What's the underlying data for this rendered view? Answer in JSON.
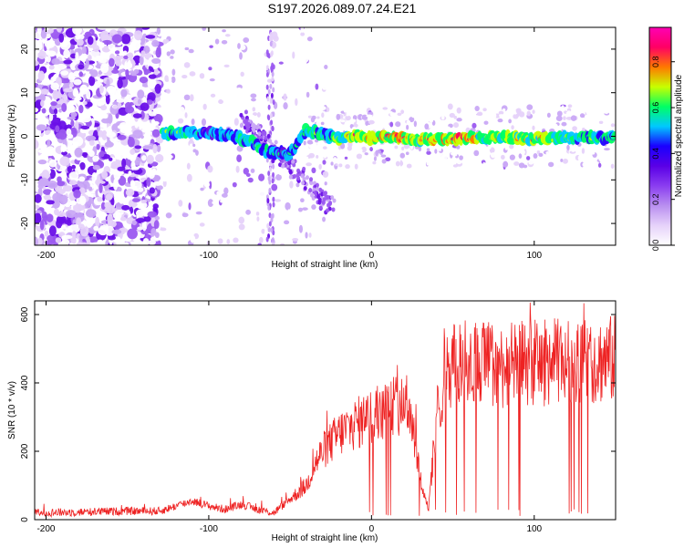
{
  "title": "S197.2026.089.07.24.E21",
  "colors": {
    "axis": "#000000",
    "snr_line": "#ee2222",
    "colormap": [
      "#ffffff",
      "#e6d2fa",
      "#b98ff0",
      "#8a3df0",
      "#5a00e6",
      "#1a00ff",
      "#00c8ff",
      "#00ff64",
      "#c8ff00",
      "#ff7800",
      "#ff0064",
      "#ff00b4"
    ]
  },
  "chart_data": [
    {
      "type": "heatmap",
      "title": "S197.2026.089.07.24.E21",
      "xlabel": "Height of straight line (km)",
      "ylabel": "Frequency (Hz)",
      "xlim": [
        -207,
        150
      ],
      "ylim": [
        -25,
        25
      ],
      "xticks": [
        "-200",
        "-100",
        "0",
        "100"
      ],
      "yticks": [
        "-20",
        "-10",
        "0",
        "10",
        "20"
      ],
      "colorbar": {
        "label": "Normalized spectral amplitude",
        "range": [
          0,
          0.95
        ],
        "ticks": [
          "0.0",
          "0.2",
          "0.4",
          "0.6",
          "0.8"
        ]
      },
      "ridge": [
        {
          "x": -128,
          "y": 0.6,
          "a": 0.45
        },
        {
          "x": -115,
          "y": 1.0,
          "a": 0.42
        },
        {
          "x": -100,
          "y": 0.8,
          "a": 0.35
        },
        {
          "x": -85,
          "y": 0.0,
          "a": 0.4
        },
        {
          "x": -75,
          "y": -1.0,
          "a": 0.45
        },
        {
          "x": -65,
          "y": -3.5,
          "a": 0.42
        },
        {
          "x": -50,
          "y": -4.0,
          "a": 0.35
        },
        {
          "x": -40,
          "y": 1.5,
          "a": 0.4
        },
        {
          "x": -30,
          "y": 0.5,
          "a": 0.45
        },
        {
          "x": -20,
          "y": -0.5,
          "a": 0.55
        },
        {
          "x": -10,
          "y": 0.3,
          "a": 0.65
        },
        {
          "x": 0,
          "y": -0.5,
          "a": 0.7
        },
        {
          "x": 10,
          "y": 0.0,
          "a": 0.75
        },
        {
          "x": 25,
          "y": -0.7,
          "a": 0.6
        },
        {
          "x": 40,
          "y": -0.7,
          "a": 0.7
        },
        {
          "x": 55,
          "y": -0.6,
          "a": 0.8
        },
        {
          "x": 70,
          "y": -0.3,
          "a": 0.55
        },
        {
          "x": 85,
          "y": -0.3,
          "a": 0.6
        },
        {
          "x": 100,
          "y": -0.6,
          "a": 0.65
        },
        {
          "x": 115,
          "y": -0.4,
          "a": 0.5
        },
        {
          "x": 130,
          "y": -0.3,
          "a": 0.45
        },
        {
          "x": 150,
          "y": -0.3,
          "a": 0.45
        }
      ]
    },
    {
      "type": "line",
      "xlabel": "Height of straight line (km)",
      "ylabel": "SNR (10 * v/v)",
      "xlim": [
        -207,
        150
      ],
      "ylim": [
        0,
        640
      ],
      "xticks": [
        "-200",
        "-100",
        "0",
        "100"
      ],
      "yticks": [
        "0",
        "200",
        "400",
        "600"
      ],
      "series": [
        {
          "x": [
            -207,
            -180,
            -150,
            -130,
            -120,
            -110,
            -100,
            -90,
            -80,
            -70,
            -60,
            -50,
            -40,
            -35,
            -30,
            -20,
            -10,
            0,
            10,
            20,
            25,
            30,
            35,
            40,
            45,
            50,
            60,
            70,
            80,
            90,
            100,
            110,
            120,
            130,
            140,
            150
          ],
          "y": [
            20,
            22,
            25,
            25,
            40,
            55,
            40,
            30,
            45,
            30,
            20,
            60,
            100,
            160,
            200,
            250,
            280,
            300,
            320,
            350,
            300,
            120,
            30,
            300,
            430,
            450,
            460,
            460,
            450,
            455,
            460,
            460,
            465,
            460,
            465,
            470
          ]
        }
      ]
    }
  ]
}
